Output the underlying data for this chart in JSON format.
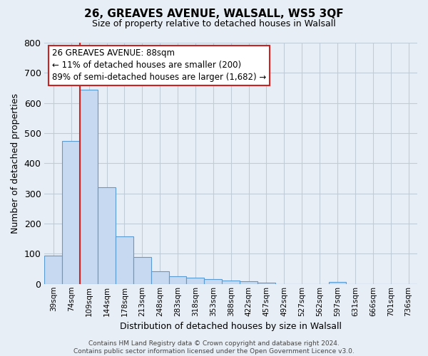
{
  "title": "26, GREAVES AVENUE, WALSALL, WS5 3QF",
  "subtitle": "Size of property relative to detached houses in Walsall",
  "xlabel": "Distribution of detached houses by size in Walsall",
  "ylabel": "Number of detached properties",
  "bar_labels": [
    "39sqm",
    "74sqm",
    "109sqm",
    "144sqm",
    "178sqm",
    "213sqm",
    "248sqm",
    "283sqm",
    "318sqm",
    "353sqm",
    "388sqm",
    "422sqm",
    "457sqm",
    "492sqm",
    "527sqm",
    "562sqm",
    "597sqm",
    "631sqm",
    "666sqm",
    "701sqm",
    "736sqm"
  ],
  "bar_values": [
    95,
    475,
    645,
    320,
    157,
    88,
    43,
    26,
    20,
    15,
    12,
    10,
    5,
    0,
    0,
    0,
    6,
    0,
    0,
    0,
    0
  ],
  "bar_color": "#c6d9f0",
  "bar_edge_color": "#5b9bd5",
  "vline_color": "#cc2222",
  "vline_pos": 1.5,
  "ylim": [
    0,
    800
  ],
  "yticks": [
    0,
    100,
    200,
    300,
    400,
    500,
    600,
    700,
    800
  ],
  "annotation_text_line1": "26 GREAVES AVENUE: 88sqm",
  "annotation_text_line2": "← 11% of detached houses are smaller (200)",
  "annotation_text_line3": "89% of semi-detached houses are larger (1,682) →",
  "footer_text": "Contains HM Land Registry data © Crown copyright and database right 2024.\nContains public sector information licensed under the Open Government Licence v3.0.",
  "bg_color": "#e8eef5",
  "plot_bg_color": "#e8eef5",
  "grid_color": "#c0ccd8",
  "title_fontsize": 11,
  "subtitle_fontsize": 9,
  "ylabel_fontsize": 9,
  "xlabel_fontsize": 9
}
